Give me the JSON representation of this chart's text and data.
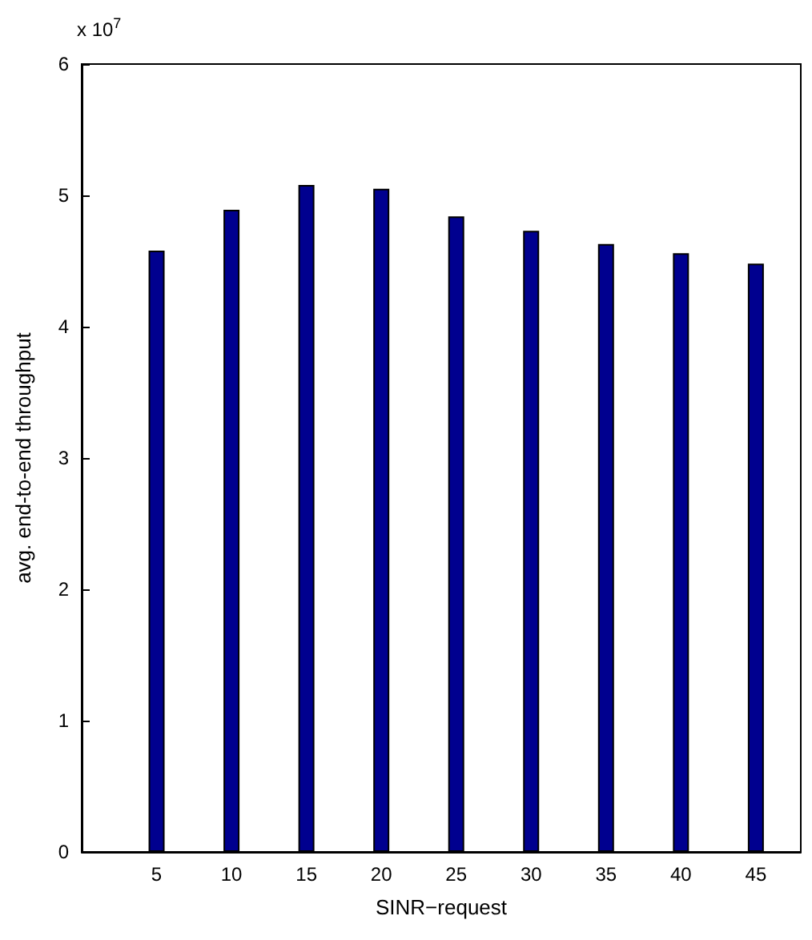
{
  "chart_data": {
    "type": "bar",
    "xlabel": "SINR−request",
    "ylabel": "avg. end-to-end throughput",
    "annotations": [
      "x 10$^{7}$"
    ],
    "x": [
      5,
      10,
      15,
      20,
      25,
      30,
      35,
      40,
      45
    ],
    "values": [
      4.58,
      4.89,
      5.08,
      5.05,
      4.84,
      4.73,
      4.63,
      4.56,
      4.48
    ],
    "color": "#00008f",
    "xlim": [
      0,
      48
    ],
    "xticks": [
      5,
      10,
      15,
      20,
      25,
      30,
      35,
      40,
      45
    ],
    "ylim": [
      0,
      6
    ],
    "yticks": [
      0,
      1,
      2,
      3,
      4,
      5,
      6
    ],
    "grid": false
  }
}
